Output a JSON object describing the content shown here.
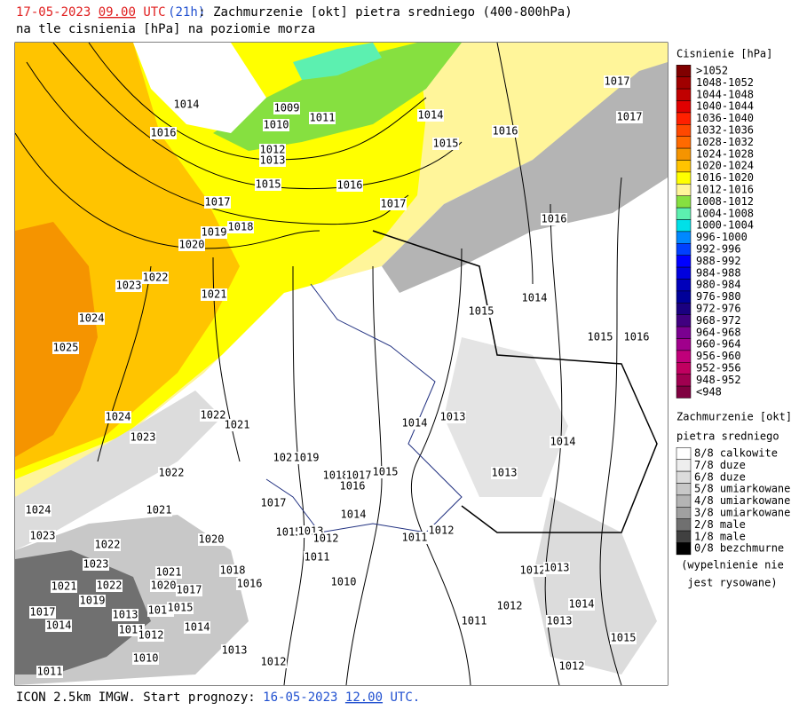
{
  "header": {
    "date": "17-05-2023",
    "time": "09.00",
    "tz": "UTC",
    "lead": "(21h)",
    "title": ": Zachmurzenie [okt] pietra sredniego (400-800hPa)",
    "subtitle": "na tle cisnienia [hPa] na poziomie morza"
  },
  "footer": {
    "model": "ICON 2.5km IMGW. Start prognozy:",
    "date": "16-05-2023",
    "time": "12.00",
    "tz": "UTC."
  },
  "pressure_legend": {
    "title": "Cisnienie [hPa]",
    "items": [
      {
        "label": ">1052",
        "color": "#800000"
      },
      {
        "label": "1048-1052",
        "color": "#a00000"
      },
      {
        "label": "1044-1048",
        "color": "#c00000"
      },
      {
        "label": "1040-1044",
        "color": "#e00000"
      },
      {
        "label": "1036-1040",
        "color": "#ff2000"
      },
      {
        "label": "1032-1036",
        "color": "#ff4800"
      },
      {
        "label": "1028-1032",
        "color": "#ff6a00"
      },
      {
        "label": "1024-1028",
        "color": "#f59400"
      },
      {
        "label": "1020-1024",
        "color": "#ffc400"
      },
      {
        "label": "1016-1020",
        "color": "#ffff00"
      },
      {
        "label": "1012-1016",
        "color": "#fff59a"
      },
      {
        "label": "1008-1012",
        "color": "#86e040"
      },
      {
        "label": "1004-1008",
        "color": "#5cf0b0"
      },
      {
        "label": "1000-1004",
        "color": "#00e0e8"
      },
      {
        "label": "996-1000",
        "color": "#0088ff"
      },
      {
        "label": "992-996",
        "color": "#0040ff"
      },
      {
        "label": "988-992",
        "color": "#0000ff"
      },
      {
        "label": "984-988",
        "color": "#0000dd"
      },
      {
        "label": "980-984",
        "color": "#0000bb"
      },
      {
        "label": "976-980",
        "color": "#000099"
      },
      {
        "label": "972-976",
        "color": "#1a0080"
      },
      {
        "label": "968-972",
        "color": "#400080"
      },
      {
        "label": "964-968",
        "color": "#7a0090"
      },
      {
        "label": "960-964",
        "color": "#a0008c"
      },
      {
        "label": "956-960",
        "color": "#c0007a"
      },
      {
        "label": "952-956",
        "color": "#c00060"
      },
      {
        "label": "948-952",
        "color": "#a00050"
      },
      {
        "label": "<948",
        "color": "#800040"
      }
    ]
  },
  "cloud_legend": {
    "title": "Zachmurzenie [okt]",
    "subtitle": "pietra sredniego",
    "items": [
      {
        "label": "8/8 calkowite",
        "color": "#ffffff"
      },
      {
        "label": "7/8 duze",
        "color": "#eeeeee"
      },
      {
        "label": "6/8 duze",
        "color": "#dcdcdc"
      },
      {
        "label": "5/8 umiarkowane",
        "color": "#c8c8c8"
      },
      {
        "label": "4/8 umiarkowane",
        "color": "#b4b4b4"
      },
      {
        "label": "3/8 umiarkowane",
        "color": "#a0a0a0"
      },
      {
        "label": "2/8 male",
        "color": "#707070"
      },
      {
        "label": "1/8 male",
        "color": "#404040"
      },
      {
        "label": "0/8 bezchmurne",
        "color": "#000000"
      }
    ],
    "note": [
      "(wypelnienie nie",
      "jest rysowane)"
    ]
  },
  "isobar_labels": [
    "1014",
    "1016",
    "1009",
    "1011",
    "1010",
    "1012",
    "1013",
    "1014",
    "1015",
    "1016",
    "1017",
    "1017",
    "1015",
    "1016",
    "1017",
    "1017",
    "1019",
    "1018",
    "1020",
    "1016",
    "1022",
    "1023",
    "1021",
    "1014",
    "1015",
    "1024",
    "1015",
    "1016",
    "1025",
    "1014",
    "1013",
    "1024",
    "1022",
    "1021",
    "1023",
    "1014",
    "1020",
    "1019",
    "1022",
    "1015",
    "1013",
    "1018",
    "1017",
    "1016",
    "1024",
    "1021",
    "1017",
    "1014",
    "1023",
    "1015",
    "1013",
    "1012",
    "1011",
    "1012",
    "1022",
    "1020",
    "1011",
    "1023",
    "1021",
    "1018",
    "1016",
    "1012",
    "1013",
    "1010",
    "1021",
    "1022",
    "1020",
    "1017",
    "1019",
    "1013",
    "1016",
    "1015",
    "1012",
    "1014",
    "1017",
    "1014",
    "1011",
    "1014",
    "1011",
    "1013",
    "1012",
    "1015",
    "1013",
    "1010",
    "1012",
    "1011",
    "1012"
  ]
}
